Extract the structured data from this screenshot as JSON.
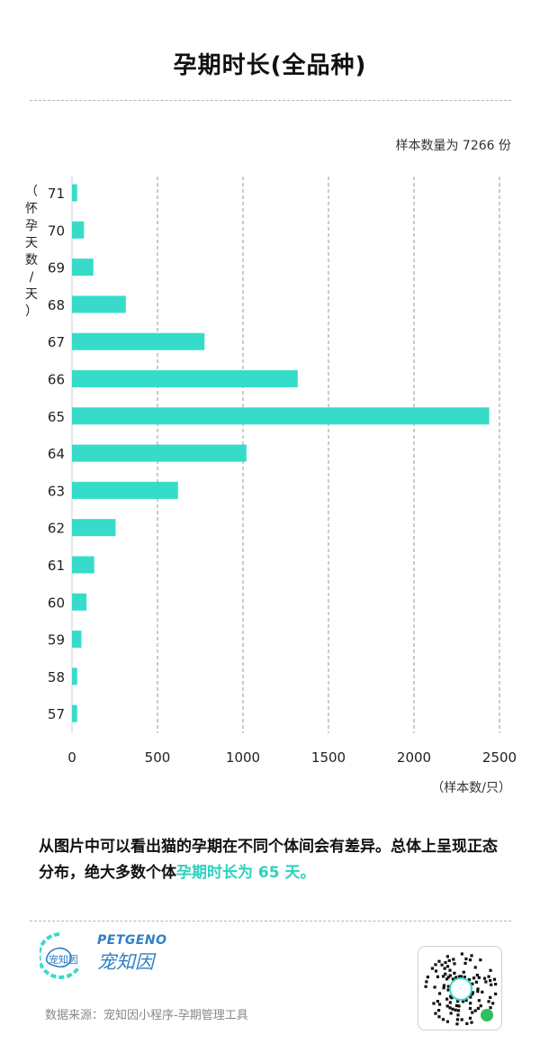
{
  "title": "孕期时长(全品种)",
  "sample_note": "样本数量为 7266 份",
  "description": {
    "text": "从图片中可以看出猫的孕期在不同个体间会有差异。总体上呈现正态分布，绝大多数个体",
    "highlight": "孕期时长为 65 天。"
  },
  "footer": {
    "brand_en": "PETGENO",
    "brand_cn": "宠知因",
    "logo_text": "宠知因",
    "source": "数据来源：宠知因小程序-孕期管理工具"
  },
  "colors": {
    "bar": "#36dcc9",
    "highlight": "#2fd1bd",
    "brand": "#2f7fc4"
  },
  "chart_data": {
    "type": "bar",
    "orientation": "horizontal",
    "title": "孕期时长(全品种)",
    "ylabel": "（怀孕天数/天）",
    "ylabel_chars": [
      "（",
      "怀",
      "孕",
      "天",
      "数",
      "/",
      "天",
      "）"
    ],
    "xlabel": "（样本数/只）",
    "categories": [
      "71",
      "70",
      "69",
      "68",
      "67",
      "66",
      "65",
      "64",
      "63",
      "62",
      "61",
      "60",
      "59",
      "58",
      "57"
    ],
    "values": [
      30,
      70,
      125,
      315,
      775,
      1320,
      2440,
      1020,
      620,
      255,
      130,
      85,
      55,
      30,
      30
    ],
    "xlim": [
      0,
      2500
    ],
    "xticks": [
      0,
      500,
      1000,
      1500,
      2000,
      2500
    ],
    "grid": "vertical-dashed"
  }
}
